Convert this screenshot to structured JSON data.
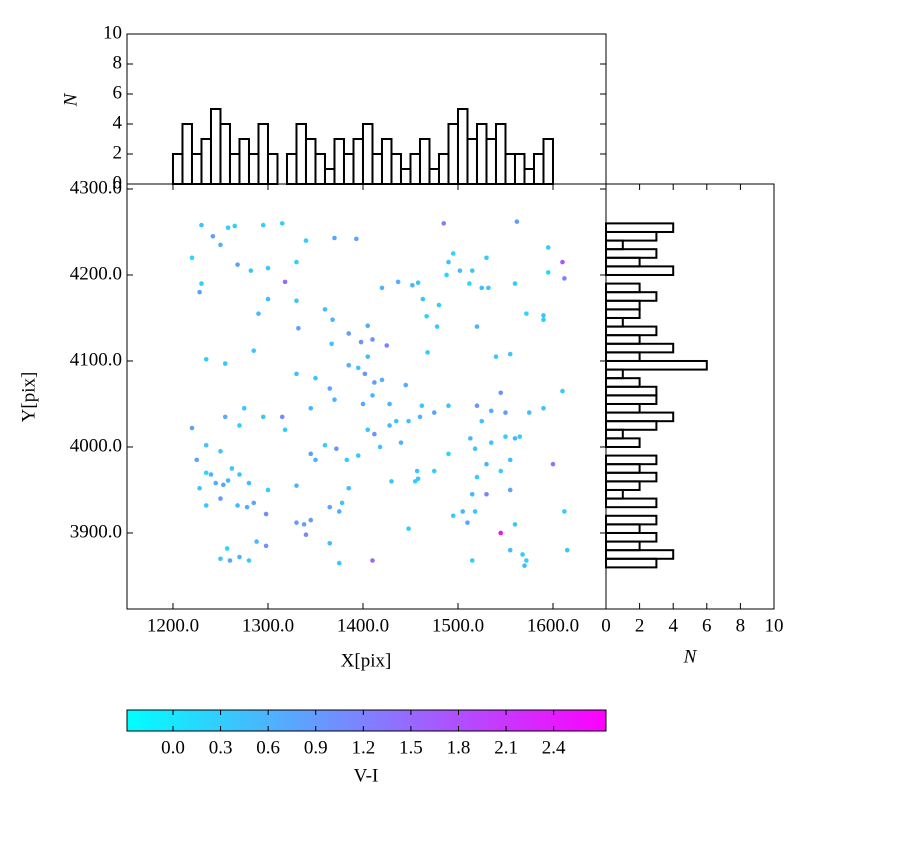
{
  "chart_data": [
    {
      "type": "scatter",
      "xlabel": "X[pix]",
      "ylabel": "Y[pix]",
      "xlim": [
        1151.6,
        1655.8
      ],
      "ylim": [
        3811.6,
        4305.8
      ],
      "xticks": [
        {
          "value": 1200,
          "label": "1200.0"
        },
        {
          "value": 1300,
          "label": "1300.0"
        },
        {
          "value": 1400,
          "label": "1400.0"
        },
        {
          "value": 1500,
          "label": "1500.0"
        },
        {
          "value": 1600,
          "label": "1600.0"
        }
      ],
      "yticks": [
        {
          "value": 3900,
          "label": "3900.0"
        },
        {
          "value": 4000,
          "label": "4000.0"
        },
        {
          "value": 4100,
          "label": "4100.0"
        },
        {
          "value": 4200,
          "label": "4200.0"
        },
        {
          "value": 4300,
          "label": "4300.0"
        }
      ],
      "colormap": "cool",
      "clim": [
        -0.29,
        2.73
      ],
      "colorbar_label": "V-I",
      "colorbar_ticks": [
        {
          "value": 0,
          "label": "0.0"
        },
        0.3,
        0.6,
        0.9,
        1.2,
        1.5,
        1.8,
        2.1,
        2.4
      ],
      "x": [
        1220,
        1230,
        1228,
        1230,
        1242,
        1250,
        1258,
        1265,
        1268,
        1282,
        1295,
        1315,
        1300,
        1318,
        1300,
        1290,
        1330,
        1340,
        1370,
        1393,
        1330,
        1332,
        1360,
        1368,
        1367,
        1385,
        1405,
        1398,
        1410,
        1425,
        1420,
        1437,
        1452,
        1458,
        1463,
        1467,
        1480,
        1478,
        1468,
        1485,
        1495,
        1490,
        1488,
        1502,
        1515,
        1530,
        1512,
        1525,
        1520,
        1532,
        1540,
        1555,
        1562,
        1560,
        1572,
        1595,
        1610,
        1612,
        1590,
        1590,
        1595,
        1235,
        1255,
        1285,
        1330,
        1350,
        1365,
        1370,
        1385,
        1395,
        1405,
        1402,
        1412,
        1420,
        1410,
        1400,
        1428,
        1445,
        1435,
        1448,
        1460,
        1462,
        1475,
        1490,
        1520,
        1525,
        1535,
        1545,
        1550,
        1575,
        1590,
        1610,
        1220,
        1235,
        1225,
        1250,
        1255,
        1262,
        1270,
        1275,
        1295,
        1315,
        1318,
        1345,
        1345,
        1350,
        1360,
        1372,
        1383,
        1395,
        1405,
        1412,
        1418,
        1428,
        1440,
        1457,
        1458,
        1455,
        1475,
        1490,
        1513,
        1518,
        1530,
        1535,
        1550,
        1555,
        1560,
        1565,
        1600,
        1228,
        1235,
        1240,
        1245,
        1253,
        1258,
        1270,
        1280,
        1300,
        1250,
        1235,
        1268,
        1278,
        1285,
        1298,
        1330,
        1345,
        1330,
        1338,
        1365,
        1375,
        1378,
        1340,
        1365,
        1385,
        1430,
        1448,
        1495,
        1505,
        1510,
        1518,
        1515,
        1520,
        1530,
        1545,
        1545,
        1555,
        1560,
        1612,
        1250,
        1257,
        1260,
        1270,
        1280,
        1288,
        1298,
        1375,
        1410,
        1515,
        1555,
        1568,
        1570,
        1572,
        1615
      ],
      "y": [
        4220,
        4258,
        4180,
        4190,
        4245,
        4235,
        4255,
        4257,
        4212,
        4205,
        4258,
        4260,
        4208,
        4192,
        4172,
        4155,
        4215,
        4240,
        4243,
        4242,
        4170,
        4138,
        4160,
        4148,
        4120,
        4132,
        4141,
        4122,
        4125,
        4118,
        4185,
        4192,
        4188,
        4191,
        4172,
        4152,
        4165,
        4140,
        4110,
        4260,
        4225,
        4215,
        4200,
        4205,
        4205,
        4220,
        4190,
        4185,
        4140,
        4185,
        4105,
        4108,
        4262,
        4190,
        4155,
        4232,
        4215,
        4196,
        4153,
        4148,
        4203,
        4102,
        4097,
        4112,
        4085,
        4080,
        4068,
        4055,
        4095,
        4092,
        4105,
        4085,
        4075,
        4078,
        4060,
        4050,
        4050,
        4072,
        4030,
        4030,
        4035,
        4048,
        4040,
        4048,
        4048,
        4030,
        4042,
        4063,
        4040,
        4040,
        4045,
        4065,
        4022,
        4002,
        3985,
        3995,
        4035,
        3975,
        4025,
        4045,
        4035,
        4035,
        4020,
        4045,
        3992,
        3985,
        4002,
        3998,
        3985,
        3990,
        4020,
        4015,
        4000,
        4025,
        4005,
        3972,
        3963,
        3960,
        3972,
        3992,
        4010,
        3998,
        3980,
        4005,
        4012,
        3985,
        4010,
        4012,
        3980,
        3952,
        3970,
        3968,
        3958,
        3956,
        3961,
        3968,
        3958,
        3950,
        3940,
        3932,
        3932,
        3930,
        3935,
        3922,
        3955,
        3915,
        3912,
        3910,
        3930,
        3925,
        3935,
        3898,
        3888,
        3952,
        3960,
        3905,
        3920,
        3925,
        3912,
        3925,
        3945,
        3965,
        3945,
        3972,
        3900,
        3950,
        3910,
        3925,
        3870,
        3882,
        3868,
        3872,
        3868,
        3890,
        3885,
        3865,
        3868,
        3868,
        3880,
        3875,
        3862,
        3868,
        3880
      ],
      "c": [
        0.2,
        0.4,
        0.8,
        0.3,
        0.9,
        0.6,
        0.3,
        0.3,
        0.9,
        0.4,
        0.3,
        0.3,
        0.4,
        1.5,
        0.5,
        0.5,
        0.3,
        0.3,
        0.8,
        0.8,
        0.4,
        0.9,
        0.5,
        0.6,
        0.4,
        0.9,
        0.7,
        1.0,
        1.0,
        1.2,
        0.6,
        0.7,
        0.6,
        0.4,
        0.4,
        0.3,
        0.3,
        0.3,
        0.3,
        1.2,
        0.2,
        0.4,
        0.2,
        0.5,
        0.4,
        0.3,
        0.2,
        0.5,
        0.6,
        0.4,
        0.4,
        0.4,
        0.9,
        0.3,
        0.2,
        0.3,
        1.7,
        1.2,
        0.4,
        0.3,
        0.2,
        0.3,
        0.4,
        0.4,
        0.5,
        0.4,
        0.8,
        0.6,
        0.7,
        0.4,
        0.5,
        1.0,
        0.9,
        0.6,
        0.6,
        0.7,
        0.6,
        0.7,
        0.4,
        0.4,
        0.6,
        0.4,
        0.8,
        0.4,
        1.0,
        0.4,
        0.7,
        1.0,
        0.9,
        0.5,
        0.4,
        0.3,
        0.8,
        0.4,
        0.8,
        0.4,
        0.7,
        0.4,
        0.3,
        0.4,
        0.4,
        1.1,
        0.3,
        0.6,
        0.9,
        0.6,
        0.3,
        1.0,
        0.3,
        0.4,
        0.4,
        1.0,
        0.4,
        0.5,
        0.6,
        0.4,
        0.4,
        0.3,
        0.3,
        0.2,
        0.6,
        0.4,
        0.6,
        0.4,
        0.3,
        0.5,
        0.6,
        0.3,
        1.3,
        0.4,
        0.2,
        0.6,
        0.7,
        0.8,
        0.6,
        0.4,
        0.5,
        0.3,
        0.9,
        0.3,
        0.5,
        0.7,
        0.8,
        1.1,
        0.6,
        0.9,
        0.9,
        0.9,
        0.8,
        0.7,
        0.4,
        1.1,
        0.5,
        0.5,
        0.4,
        0.3,
        0.3,
        0.6,
        0.8,
        0.4,
        0.6,
        0.3,
        1.2,
        0.3,
        2.5,
        0.8,
        0.4,
        0.3,
        0.4,
        0.2,
        0.8,
        0.6,
        0.3,
        0.5,
        1.0,
        0.4,
        1.5,
        0.3,
        0.5,
        0.3,
        0.5,
        0.3,
        0.4
      ]
    },
    {
      "type": "histogram",
      "ylabel": "N",
      "xlim": [
        1151.6,
        1655.8
      ],
      "ylim": [
        0,
        10
      ],
      "yticks": [
        0,
        2,
        4,
        6,
        8,
        10
      ],
      "bins": [
        1200,
        1210,
        1220,
        1230,
        1240,
        1250,
        1260,
        1270,
        1280,
        1290,
        1300,
        1310,
        1320,
        1330,
        1340,
        1350,
        1360,
        1370,
        1380,
        1390,
        1400,
        1410,
        1420,
        1430,
        1440,
        1450,
        1460,
        1470,
        1480,
        1490,
        1500,
        1510,
        1520,
        1530,
        1540,
        1550,
        1560,
        1570,
        1580,
        1590,
        1600
      ],
      "values": [
        2,
        4,
        2,
        3,
        5,
        4,
        2,
        3,
        2,
        4,
        2,
        0,
        2,
        4,
        3,
        2,
        1,
        3,
        2,
        3,
        4,
        2,
        3,
        2,
        1,
        2,
        3,
        1,
        2,
        4,
        5,
        3,
        4,
        3,
        4,
        2,
        2,
        1,
        2,
        3
      ]
    },
    {
      "type": "histogram-horizontal",
      "xlabel": "N",
      "ylim": [
        3811.6,
        4305.8
      ],
      "xlim": [
        0,
        10
      ],
      "xticks": [
        0,
        2,
        4,
        6,
        8,
        10
      ],
      "bins": [
        3860,
        3870,
        3880,
        3890,
        3900,
        3910,
        3920,
        3930,
        3940,
        3950,
        3960,
        3970,
        3980,
        3990,
        4000,
        4010,
        4020,
        4030,
        4040,
        4050,
        4060,
        4070,
        4080,
        4090,
        4100,
        4110,
        4120,
        4130,
        4140,
        4150,
        4160,
        4170,
        4180,
        4190,
        4200,
        4210,
        4220,
        4230,
        4240,
        4250,
        4260
      ],
      "values": [
        3,
        4,
        2,
        3,
        2,
        3,
        0,
        3,
        1,
        2,
        3,
        2,
        3,
        0,
        2,
        1,
        3,
        4,
        2,
        3,
        3,
        2,
        1,
        6,
        2,
        4,
        2,
        3,
        1,
        2,
        2,
        3,
        2,
        0,
        4,
        2,
        3,
        1,
        3,
        4
      ]
    }
  ]
}
